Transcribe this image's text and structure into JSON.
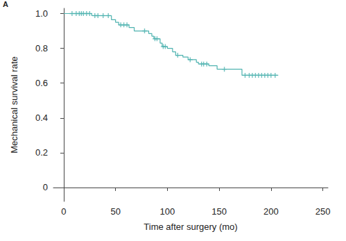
{
  "chart_data": {
    "type": "step",
    "annotations": [
      "A"
    ],
    "x_label": "Time after surgery (mo)",
    "y_label": "Mechanical survival rate",
    "x": [
      0,
      27,
      46,
      50,
      53,
      63,
      68,
      82,
      85,
      87,
      93,
      95,
      100,
      105,
      108,
      115,
      120,
      128,
      130,
      140,
      148,
      172,
      207
    ],
    "values": [
      1.0,
      0.988,
      0.965,
      0.95,
      0.935,
      0.92,
      0.9,
      0.885,
      0.87,
      0.855,
      0.83,
      0.81,
      0.8,
      0.78,
      0.76,
      0.75,
      0.735,
      0.72,
      0.71,
      0.7,
      0.68,
      0.645,
      0.645
    ],
    "censored": {
      "x": [
        8,
        12,
        15,
        17,
        19,
        22,
        25,
        30,
        33,
        38,
        43,
        55,
        58,
        61,
        78,
        88,
        90,
        96,
        98,
        110,
        122,
        133,
        135,
        138,
        155,
        175,
        179,
        182,
        185,
        188,
        191,
        194,
        197,
        200,
        204
      ],
      "values": [
        1.0,
        1.0,
        1.0,
        1.0,
        1.0,
        1.0,
        1.0,
        0.988,
        0.988,
        0.988,
        0.988,
        0.935,
        0.935,
        0.935,
        0.9,
        0.855,
        0.855,
        0.81,
        0.81,
        0.76,
        0.735,
        0.71,
        0.71,
        0.71,
        0.68,
        0.645,
        0.645,
        0.645,
        0.645,
        0.645,
        0.645,
        0.645,
        0.645,
        0.645,
        0.645
      ],
      "marker": "plus"
    },
    "color": "#4fb3b0",
    "xlim": [
      -10,
      255
    ],
    "xticks": [
      0,
      50,
      100,
      150,
      200,
      250
    ],
    "ylim": [
      -0.08,
      1.03
    ],
    "yticks": [
      0,
      0.2,
      0.4,
      0.6,
      0.8,
      {
        "value": 1,
        "label": "1.0"
      }
    ],
    "grid": false
  }
}
